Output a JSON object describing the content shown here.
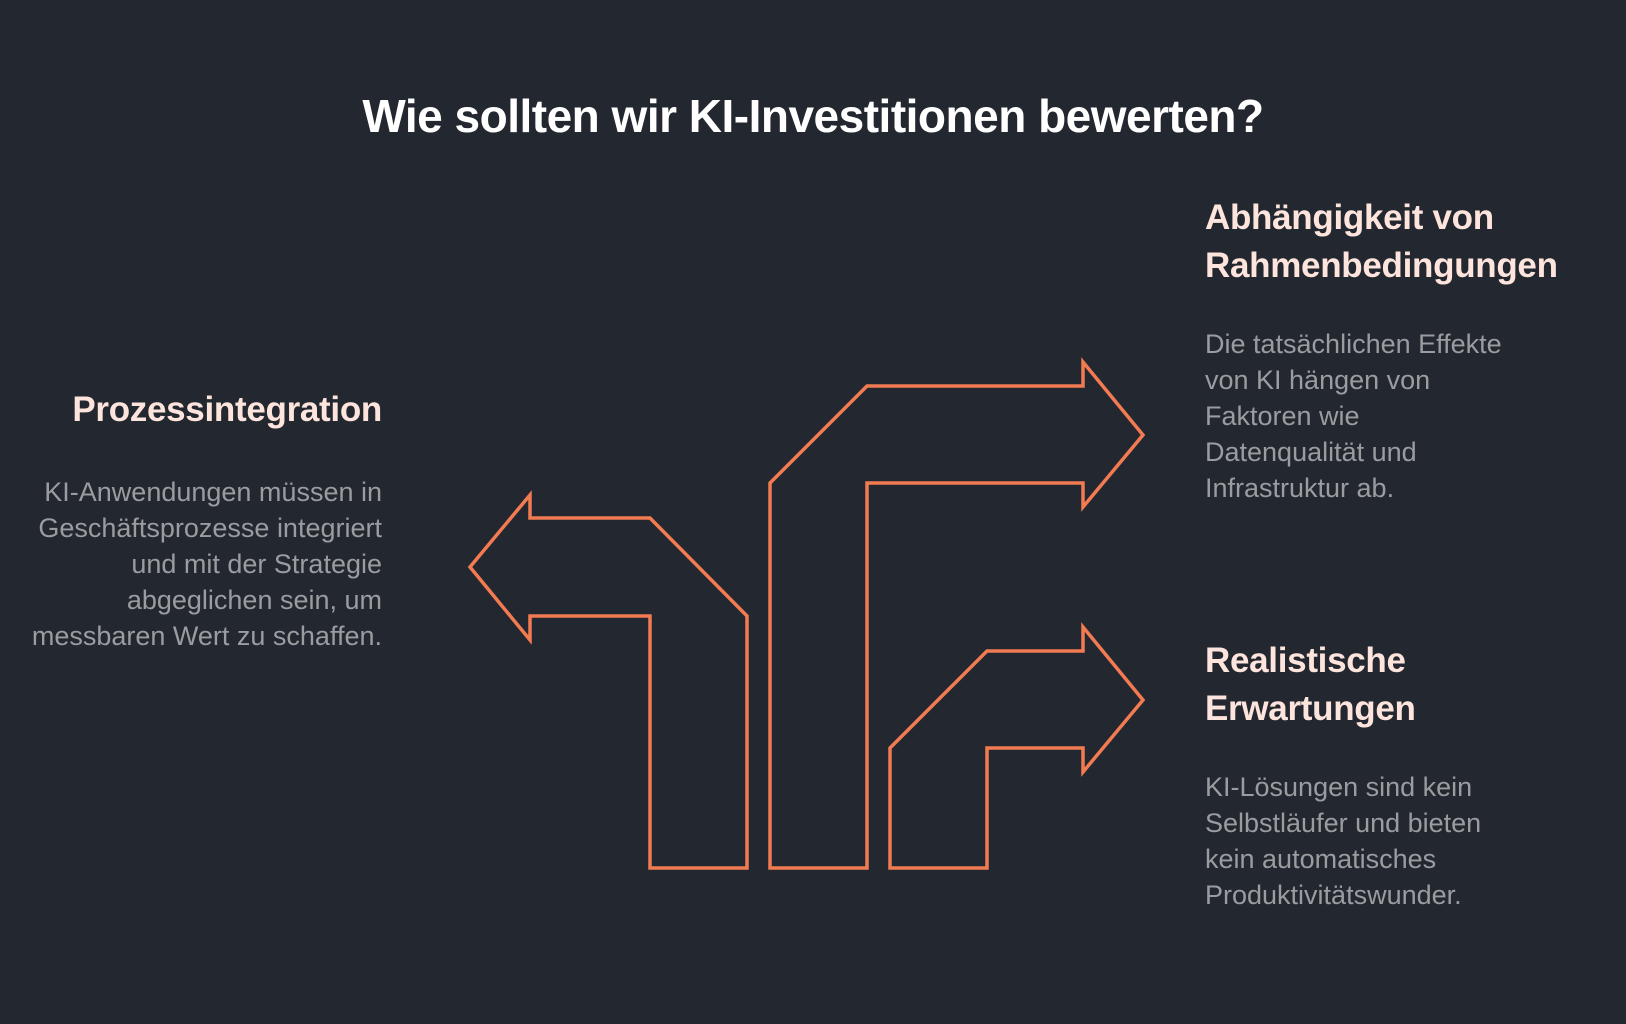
{
  "title": "Wie sollten wir KI-Investitionen bewerten?",
  "accent_color": "#f27b52",
  "heading_color": "#fde4dc",
  "body_color": "#9a9ca0",
  "background_color": "#23272f",
  "blocks": [
    {
      "heading": "Prozessintegration",
      "text": "KI-Anwendungen müssen in Geschäftsprozesse integriert und mit der Strategie abgeglichen sein, um messbaren Wert zu schaffen."
    },
    {
      "heading": "Abhängigkeit von Rahmenbedingungen",
      "text": "Die tatsächlichen Effekte von KI hängen von Faktoren wie Datenqualität und Infrastruktur ab."
    },
    {
      "heading": "Realistische Erwartungen",
      "text": "KI-Lösungen sind kein Selbstläufer und bieten kein automatisches Produktivitätswunder."
    }
  ]
}
